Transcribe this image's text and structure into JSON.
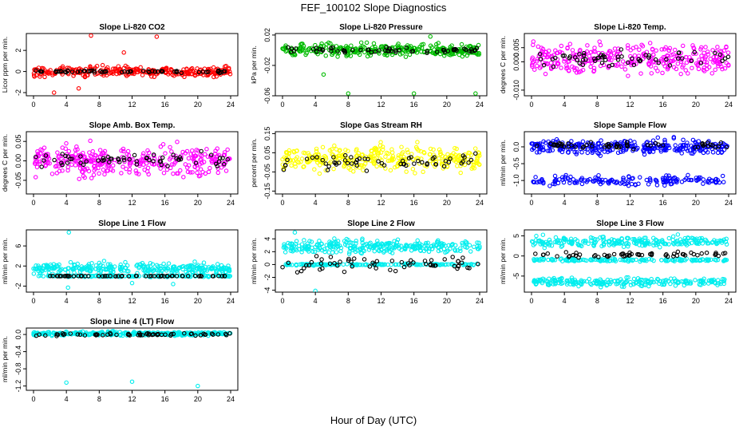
{
  "figure": {
    "title": "FEF_100102  Slope Diagnostics",
    "xlabel": "Hour of Day (UTC)"
  },
  "chart_data": [
    {
      "type": "scatter",
      "title": "Slope Li-820 CO2",
      "ylabel": "Licor ppm per min.",
      "color": "#ff0000",
      "xlim": [
        0,
        24
      ],
      "xticks": [
        "0",
        "4",
        "8",
        "12",
        "16",
        "20",
        "24"
      ],
      "ylim": [
        -2.3,
        3.6
      ],
      "yticks": [
        {
          "v": -2,
          "label": "-2"
        },
        {
          "v": 0,
          "label": "0"
        },
        {
          "v": 2,
          "label": "2"
        }
      ],
      "bands": [
        {
          "center": 0,
          "spread": 0.45,
          "count": 300
        }
      ],
      "outliers": [
        {
          "x": 7.0,
          "y": 3.4
        },
        {
          "x": 15.0,
          "y": 3.3
        },
        {
          "x": 11.0,
          "y": 1.8
        },
        {
          "x": 2.5,
          "y": -2.0
        },
        {
          "x": 5.5,
          "y": -1.6
        }
      ],
      "black": {
        "center": 0,
        "spread": 0.1,
        "count": 60
      }
    },
    {
      "type": "scatter",
      "title": "Slope Li-820 Pressure",
      "ylabel": "kPa per min.",
      "color": "#00bb00",
      "xlim": [
        0,
        24
      ],
      "xticks": [
        "0",
        "4",
        "8",
        "12",
        "16",
        "20",
        "24"
      ],
      "ylim": [
        -0.06,
        0.022
      ],
      "yticks": [
        {
          "v": -0.06,
          "label": "-0.06"
        },
        {
          "v": -0.02,
          "label": "-0.02"
        },
        {
          "v": 0.02,
          "label": "0.02"
        }
      ],
      "bands": [
        {
          "center": 0.0,
          "spread": 0.008,
          "count": 320
        }
      ],
      "outliers": [
        {
          "x": 8.0,
          "y": -0.057
        },
        {
          "x": 16.0,
          "y": -0.057
        },
        {
          "x": 23.5,
          "y": -0.057
        },
        {
          "x": 5.0,
          "y": -0.032
        },
        {
          "x": 18.0,
          "y": 0.018
        }
      ],
      "black": {
        "center": 0.0,
        "spread": 0.003,
        "count": 60
      }
    },
    {
      "type": "scatter",
      "title": "Slope Li-820 Temp.",
      "ylabel": "degrees C per min.",
      "color": "#ff00ff",
      "xlim": [
        0,
        24
      ],
      "xticks": [
        "0",
        "4",
        "8",
        "12",
        "16",
        "20",
        "24"
      ],
      "ylim": [
        -0.012,
        0.01
      ],
      "yticks": [
        {
          "v": -0.01,
          "label": "-0.010"
        },
        {
          "v": 0.0,
          "label": "0.000"
        },
        {
          "v": 0.005,
          "label": "0.005"
        }
      ],
      "bands": [
        {
          "center": 0.0012,
          "spread": 0.0052,
          "count": 330
        }
      ],
      "outliers": [],
      "black": {
        "center": 0.0012,
        "spread": 0.003,
        "count": 60
      }
    },
    {
      "type": "scatter",
      "title": "Slope Amb. Box Temp.",
      "ylabel": "degrees C per min.",
      "color": "#ff00ff",
      "xlim": [
        0,
        24
      ],
      "xticks": [
        "0",
        "4",
        "8",
        "12",
        "16",
        "20",
        "24"
      ],
      "ylim": [
        -0.085,
        0.075
      ],
      "yticks": [
        {
          "v": -0.05,
          "label": "-0.05"
        },
        {
          "v": 0.0,
          "label": "0.00"
        },
        {
          "v": 0.05,
          "label": "0.05"
        }
      ],
      "bands": [
        {
          "center": 0.0,
          "spread": 0.035,
          "count": 330
        }
      ],
      "outliers": [],
      "black": {
        "center": 0.0,
        "spread": 0.02,
        "count": 60
      }
    },
    {
      "type": "scatter",
      "title": "Slope Gas Stream RH",
      "ylabel": "percent per min.",
      "color": "#ffff00",
      "xlim": [
        0,
        24
      ],
      "xticks": [
        "0",
        "4",
        "8",
        "12",
        "16",
        "20",
        "24"
      ],
      "ylim": [
        -0.165,
        0.16
      ],
      "yticks": [
        {
          "v": -0.15,
          "label": "-0.15"
        },
        {
          "v": -0.05,
          "label": "-0.05"
        },
        {
          "v": 0.05,
          "label": "0.05"
        },
        {
          "v": 0.15,
          "label": "0.15"
        }
      ],
      "bands": [
        {
          "center": 0.02,
          "spread": 0.06,
          "count": 330
        }
      ],
      "outliers": [],
      "black": {
        "center": 0.0,
        "spread": 0.04,
        "count": 60
      }
    },
    {
      "type": "scatter",
      "title": "Slope Sample Flow",
      "ylabel": "ml/min per min.",
      "color": "#0000ff",
      "xlim": [
        0,
        24
      ],
      "xticks": [
        "0",
        "4",
        "8",
        "12",
        "16",
        "20",
        "24"
      ],
      "ylim": [
        -1.4,
        0.45
      ],
      "yticks": [
        {
          "v": -1.0,
          "label": "-1.0"
        },
        {
          "v": -0.5,
          "label": "-0.5"
        },
        {
          "v": 0.0,
          "label": "0.0"
        }
      ],
      "bands": [
        {
          "center": 0.0,
          "spread": 0.2,
          "count": 300
        },
        {
          "center": -1.0,
          "spread": 0.14,
          "count": 160
        }
      ],
      "outliers": [],
      "black": {
        "center": 0.05,
        "spread": 0.12,
        "count": 60
      }
    },
    {
      "type": "scatter",
      "title": "Slope Line 1 Flow",
      "ylabel": "ml/min per min.",
      "color": "#00eeee",
      "xlim": [
        0,
        24
      ],
      "xticks": [
        "0",
        "4",
        "8",
        "12",
        "16",
        "20",
        "24"
      ],
      "ylim": [
        -3.2,
        9.2
      ],
      "yticks": [
        {
          "v": -2,
          "label": "-2"
        },
        {
          "v": 2,
          "label": "2"
        },
        {
          "v": 6,
          "label": "6"
        }
      ],
      "bands": [
        {
          "center": 1.5,
          "spread": 1.0,
          "count": 280
        },
        {
          "center": 0.0,
          "spread": 0.15,
          "count": 140
        }
      ],
      "outliers": [
        {
          "x": 4.3,
          "y": 8.7
        },
        {
          "x": 4.2,
          "y": -2.3
        },
        {
          "x": 12.0,
          "y": -1.4
        },
        {
          "x": 17.0,
          "y": -1.6
        }
      ],
      "black": {
        "center": 0.0,
        "spread": 0.05,
        "count": 60
      }
    },
    {
      "type": "scatter",
      "title": "Slope Line 2 Flow",
      "ylabel": "ml/min per min.",
      "color": "#00eeee",
      "xlim": [
        0,
        24
      ],
      "xticks": [
        "0",
        "4",
        "8",
        "12",
        "16",
        "20",
        "24"
      ],
      "ylim": [
        -4.3,
        5.4
      ],
      "yticks": [
        {
          "v": -4,
          "label": "-4"
        },
        {
          "v": -2,
          "label": "-2"
        },
        {
          "v": 0,
          "label": "0"
        },
        {
          "v": 2,
          "label": "2"
        },
        {
          "v": 4,
          "label": "4"
        }
      ],
      "bands": [
        {
          "center": 2.8,
          "spread": 1.0,
          "count": 280
        },
        {
          "center": 0.0,
          "spread": 0.12,
          "count": 160
        }
      ],
      "outliers": [
        {
          "x": 4.0,
          "y": -4.1
        },
        {
          "x": 1.5,
          "y": 5.0
        }
      ],
      "black": {
        "center": 0.2,
        "spread": 1.2,
        "count": 60
      }
    },
    {
      "type": "scatter",
      "title": "Slope Line 3 Flow",
      "ylabel": "ml/min per min.",
      "color": "#00eeee",
      "xlim": [
        0,
        24
      ],
      "xticks": [
        "0",
        "4",
        "8",
        "12",
        "16",
        "20",
        "24"
      ],
      "ylim": [
        -9.0,
        6.5
      ],
      "yticks": [
        {
          "v": -5,
          "label": "-5"
        },
        {
          "v": 0,
          "label": "0"
        },
        {
          "v": 5,
          "label": "5"
        }
      ],
      "bands": [
        {
          "center": 3.5,
          "spread": 1.2,
          "count": 230
        },
        {
          "center": -1.0,
          "spread": 0.3,
          "count": 150
        },
        {
          "center": -6.5,
          "spread": 1.0,
          "count": 230
        }
      ],
      "outliers": [],
      "black": {
        "center": 0.3,
        "spread": 0.8,
        "count": 60
      }
    },
    {
      "type": "scatter",
      "title": "Slope Line 4 (LT) Flow",
      "ylabel": "ml/min per min.",
      "color": "#00eeee",
      "xlim": [
        0,
        24
      ],
      "xticks": [
        "0",
        "4",
        "8",
        "12",
        "16",
        "20",
        "24"
      ],
      "ylim": [
        -1.3,
        0.15
      ],
      "yticks": [
        {
          "v": -1.2,
          "label": "-1.2"
        },
        {
          "v": -0.8,
          "label": "-0.8"
        },
        {
          "v": -0.4,
          "label": "-0.4"
        },
        {
          "v": 0.0,
          "label": "0.0"
        }
      ],
      "bands": [
        {
          "center": 0.02,
          "spread": 0.04,
          "count": 330
        }
      ],
      "outliers": [
        {
          "x": 4.0,
          "y": -1.12
        },
        {
          "x": 12.0,
          "y": -1.1
        },
        {
          "x": 20.0,
          "y": -1.2
        }
      ],
      "black": {
        "center": 0.0,
        "spread": 0.03,
        "count": 60
      }
    }
  ]
}
